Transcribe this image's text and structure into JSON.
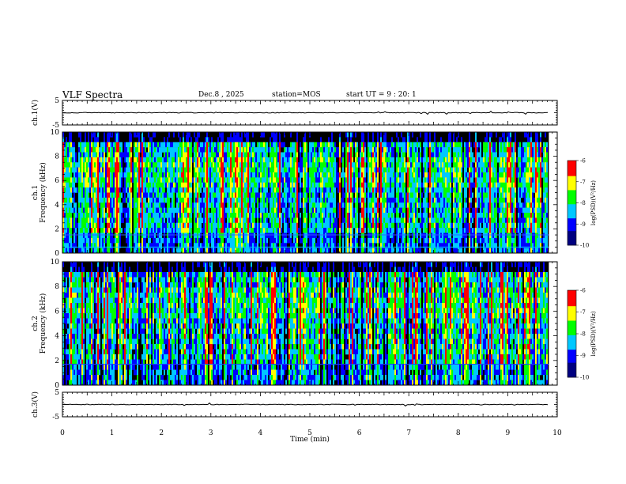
{
  "header": {
    "title": "VLF Spectra",
    "date": "Dec.8 , 2025",
    "station": "station=MOS",
    "start_ut": "start UT =  9 : 20: 1"
  },
  "chart_data": {
    "type": "heatmap",
    "title": "VLF Spectra",
    "xlabel": "Time  (min)",
    "xlim": [
      0,
      10
    ],
    "x_ticks": [
      "0",
      "1",
      "2",
      "3",
      "4",
      "5",
      "6",
      "7",
      "8",
      "9",
      "10"
    ],
    "data_end_min": 9.83,
    "panels": [
      {
        "name": "ch1-waveform",
        "type": "line",
        "ylabel": "ch.1(V)",
        "ylim": [
          -5,
          5
        ],
        "y_ticks": [
          "5",
          "-5"
        ],
        "level_v": 0
      },
      {
        "name": "ch1-spectrogram",
        "type": "heatmap",
        "ylabel_line1": "ch.1",
        "ylabel_line2": "Frequency (kHz)",
        "ylim": [
          0,
          10
        ],
        "y_ticks": [
          "0",
          "2",
          "4",
          "6",
          "8",
          "10"
        ],
        "colorbar": {
          "label": "log(PSD)(V²/Hz)",
          "range": [
            -10,
            -6
          ],
          "ticks": [
            "-6",
            "-7",
            "-8",
            "-9",
            "-10"
          ]
        }
      },
      {
        "name": "ch2-spectrogram",
        "type": "heatmap",
        "ylabel_line1": "ch.2",
        "ylabel_line2": "Frequency (kHz)",
        "ylim": [
          0,
          10
        ],
        "y_ticks": [
          "0",
          "2",
          "4",
          "6",
          "8",
          "10"
        ],
        "colorbar": {
          "label": "log(PSD)(V²/Hz)",
          "range": [
            -10,
            -6
          ],
          "ticks": [
            "-6",
            "-7",
            "-8",
            "-9",
            "-10"
          ]
        }
      },
      {
        "name": "ch3-waveform",
        "type": "line",
        "ylabel": "ch.3(V)",
        "ylim": [
          -5,
          5
        ],
        "y_ticks": [
          "5",
          "-5"
        ],
        "level_v": 0
      }
    ],
    "colormap": [
      "#000080",
      "#0000ff",
      "#00c8ff",
      "#00ff00",
      "#ffff00",
      "#ff0000",
      "#ffffff"
    ]
  }
}
